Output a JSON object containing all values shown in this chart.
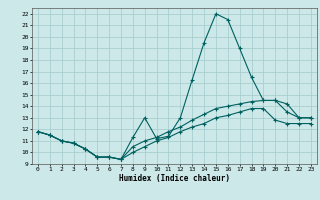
{
  "xlabel": "Humidex (Indice chaleur)",
  "bg_color": "#cce8e8",
  "grid_color": "#aacece",
  "line_color": "#006060",
  "xlim": [
    -0.5,
    23.5
  ],
  "ylim": [
    9,
    22.5
  ],
  "xticks": [
    0,
    1,
    2,
    3,
    4,
    5,
    6,
    7,
    8,
    9,
    10,
    11,
    12,
    13,
    14,
    15,
    16,
    17,
    18,
    19,
    20,
    21,
    22,
    23
  ],
  "yticks": [
    9,
    10,
    11,
    12,
    13,
    14,
    15,
    16,
    17,
    18,
    19,
    20,
    21,
    22
  ],
  "series": [
    {
      "x": [
        0,
        1,
        2,
        3,
        4,
        5,
        6,
        7,
        8,
        9,
        10,
        11,
        12,
        13,
        14,
        15,
        16,
        17,
        18,
        19,
        20,
        21,
        22,
        23
      ],
      "y": [
        11.8,
        11.5,
        11.0,
        10.8,
        10.3,
        9.6,
        9.6,
        9.4,
        11.3,
        13.0,
        11.2,
        11.4,
        13.0,
        16.3,
        19.5,
        22.0,
        21.5,
        19.0,
        16.5,
        14.5,
        14.5,
        14.2,
        13.0,
        13.0
      ]
    },
    {
      "x": [
        0,
        1,
        2,
        3,
        4,
        5,
        6,
        7,
        8,
        9,
        10,
        11,
        12,
        13,
        14,
        15,
        16,
        17,
        18,
        19,
        20,
        21,
        22,
        23
      ],
      "y": [
        11.8,
        11.5,
        11.0,
        10.8,
        10.3,
        9.6,
        9.6,
        9.4,
        10.5,
        11.0,
        11.3,
        11.8,
        12.2,
        12.8,
        13.3,
        13.8,
        14.0,
        14.2,
        14.4,
        14.5,
        14.5,
        13.5,
        13.0,
        13.0
      ]
    },
    {
      "x": [
        0,
        1,
        2,
        3,
        4,
        5,
        6,
        7,
        8,
        9,
        10,
        11,
        12,
        13,
        14,
        15,
        16,
        17,
        18,
        19,
        20,
        21,
        22,
        23
      ],
      "y": [
        11.8,
        11.5,
        11.0,
        10.8,
        10.3,
        9.6,
        9.6,
        9.4,
        10.0,
        10.5,
        11.0,
        11.3,
        11.8,
        12.2,
        12.5,
        13.0,
        13.2,
        13.5,
        13.8,
        13.8,
        12.8,
        12.5,
        12.5,
        12.5
      ]
    }
  ]
}
